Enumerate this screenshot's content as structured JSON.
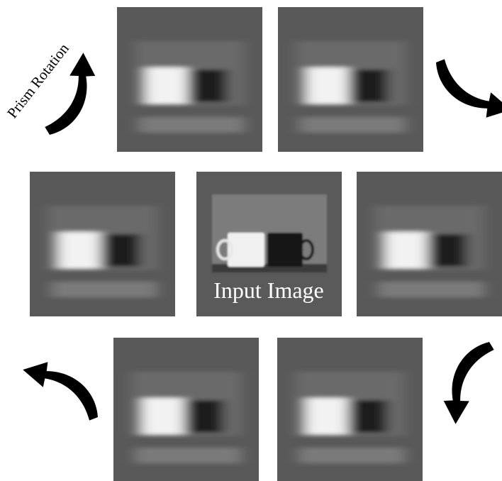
{
  "labels": {
    "rotation": "Prism Rotation",
    "input": "Input Image"
  }
}
